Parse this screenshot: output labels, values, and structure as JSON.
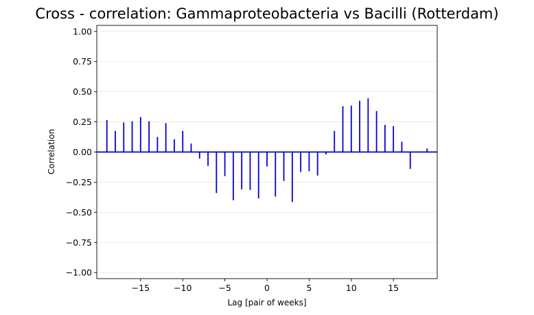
{
  "chart_data": {
    "type": "bar",
    "title": "Cross - correlation: Gammaproteobacteria vs Bacilli (Rotterdam)",
    "xlabel": "Lag [pair of weeks]",
    "ylabel": "Correlation",
    "xlim": [
      -20.2,
      20.2
    ],
    "ylim": [
      -1.05,
      1.05
    ],
    "xticks": [
      -15,
      -10,
      -5,
      0,
      5,
      10,
      15
    ],
    "xtick_labels": [
      "−15",
      "−10",
      "−5",
      "0",
      "5",
      "10",
      "15"
    ],
    "yticks": [
      -1.0,
      -0.75,
      -0.5,
      -0.25,
      0.0,
      0.25,
      0.5,
      0.75,
      1.0
    ],
    "ytick_labels": [
      "−1.00",
      "−0.75",
      "−0.50",
      "−0.25",
      "0.00",
      "0.25",
      "0.50",
      "0.75",
      "1.00"
    ],
    "grid": "horizontal",
    "bar_color": "#0000cc",
    "baseline_color": "#0000cc",
    "x": [
      -19,
      -18,
      -17,
      -16,
      -15,
      -14,
      -13,
      -12,
      -11,
      -10,
      -9,
      -8,
      -7,
      -6,
      -5,
      -4,
      -3,
      -2,
      -1,
      0,
      1,
      2,
      3,
      4,
      5,
      6,
      7,
      8,
      9,
      10,
      11,
      12,
      13,
      14,
      15,
      16,
      17,
      18,
      19
    ],
    "values": [
      0.265,
      0.175,
      0.245,
      0.255,
      0.29,
      0.255,
      0.125,
      0.24,
      0.105,
      0.175,
      0.07,
      -0.055,
      -0.115,
      -0.34,
      -0.2,
      -0.4,
      -0.31,
      -0.315,
      -0.385,
      -0.12,
      -0.37,
      -0.24,
      -0.415,
      -0.165,
      -0.16,
      -0.195,
      -0.02,
      0.175,
      0.38,
      0.385,
      0.425,
      0.445,
      0.34,
      0.225,
      0.215,
      0.085,
      -0.14,
      0.005,
      0.03
    ]
  }
}
